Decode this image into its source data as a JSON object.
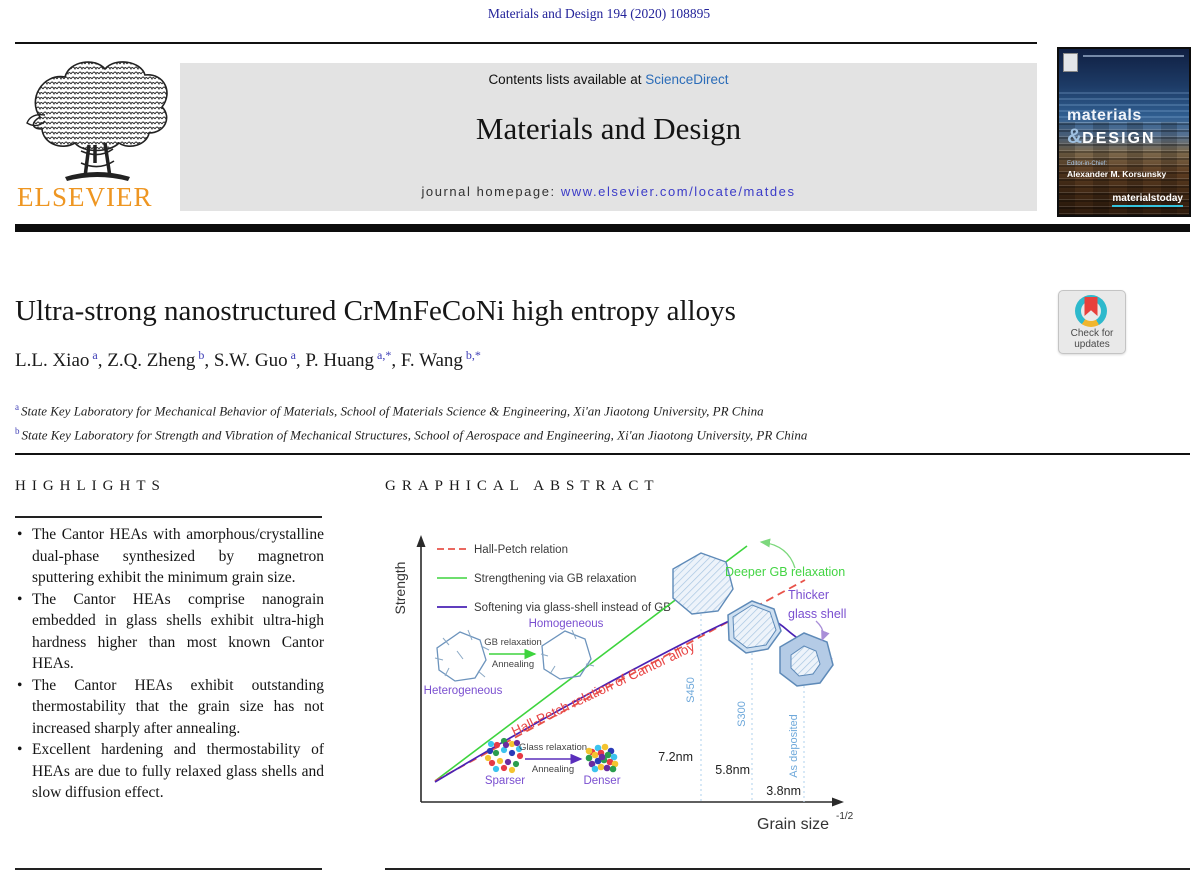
{
  "page": {
    "citation": "Materials and Design 194 (2020) 108895"
  },
  "header": {
    "contents_prefix": "Contents lists available at ",
    "sciencedirect": "ScienceDirect",
    "journal_title": "Materials and Design",
    "homepage_prefix": "journal homepage: ",
    "homepage_url": "www.elsevier.com/locate/matdes",
    "publisher": "ELSEVIER"
  },
  "cover": {
    "title_top": "materials",
    "amp": "&",
    "title_bottom": "DESIGN",
    "editor_label": "Editor-in-Chief:",
    "editor": "Alexander M. Korsunsky",
    "brand": "materialstoday"
  },
  "article": {
    "title": "Ultra-strong nanostructured CrMnFeCoNi high entropy alloys",
    "authors": [
      {
        "name": "L.L. Xiao",
        "sup": "a",
        "sep": ", "
      },
      {
        "name": "Z.Q. Zheng",
        "sup": "b",
        "sep": ", "
      },
      {
        "name": "S.W. Guo",
        "sup": "a",
        "sep": ", "
      },
      {
        "name": "P. Huang",
        "sup": "a,*",
        "sep": ", "
      },
      {
        "name": "F. Wang",
        "sup": "b,*",
        "sep": ""
      }
    ],
    "affiliations": [
      {
        "sup": "a",
        "text": "State Key Laboratory for Mechanical Behavior of Materials, School of Materials Science & Engineering, Xi'an Jiaotong University, PR China"
      },
      {
        "sup": "b",
        "text": "State Key Laboratory for Strength and Vibration of Mechanical Structures, School of Aerospace and Engineering, Xi'an Jiaotong University, PR China"
      }
    ],
    "check_updates": {
      "line1": "Check for",
      "line2": "updates"
    }
  },
  "highlights": {
    "heading": "HIGHLIGHTS",
    "items": [
      "The Cantor HEAs with amorphous/crystalline dual-phase synthesized by magnetron sputtering exhibit the minimum grain size.",
      "The Cantor HEAs comprise nanograin embedded in glass shells exhibit ultra-high hardness higher than most known Cantor HEAs.",
      "The Cantor HEAs exhibit outstanding thermostability that the grain size has not increased sharply after annealing.",
      "Excellent hardening and thermostability of HEAs are due to fully relaxed glass shells and slow diffusion effect."
    ]
  },
  "graphical_abstract": {
    "heading": "GRAPHICAL ABSTRACT",
    "chart_data": {
      "type": "line",
      "title": "",
      "xlabel": "Grain size",
      "xlabel_sup": "-1/2",
      "ylabel": "Strength",
      "axes_quantitative": false,
      "legend_position": "top-left",
      "series": [
        {
          "name": "Hall-Petch relation",
          "style": "dashed",
          "color": "#e8534a"
        },
        {
          "name": "Strengthening via GB relaxation",
          "style": "solid",
          "color": "#3ed43e"
        },
        {
          "name": "Softening via glass-shell instead of GB",
          "style": "solid",
          "color": "#4a22b4"
        }
      ],
      "samples": [
        {
          "label": "S450",
          "grain_size": "7.2nm"
        },
        {
          "label": "S300",
          "grain_size": "5.8nm"
        },
        {
          "label": "As deposited",
          "grain_size": "3.8nm"
        }
      ],
      "annotations": {
        "deeper_gb": "Deeper GB relaxation",
        "thicker_line1": "Thicker",
        "thicker_line2": "glass shell",
        "hall_petch_cantor": "Hall-Petch relation of Cantor alloy",
        "heterogeneous": "Heterogeneous",
        "homogeneous": "Homogeneous",
        "gb_relaxation": "GB relaxation",
        "annealing_top": "Annealing",
        "glass_relaxation": "Glass relaxation",
        "annealing_bottom": "Annealing",
        "sparser": "Sparser",
        "denser": "Denser",
        "s450": "S450",
        "s300": "S300",
        "as_deposited": "As deposited",
        "nm72": "7.2nm",
        "nm58": "5.8nm",
        "nm38": "3.8nm"
      }
    }
  },
  "colors": {
    "elsevier_orange": "#ee9622",
    "sciencedirect_blue": "#2b6cb8",
    "homepage_link_blue": "#3b3bc8",
    "citation_navy": "#23239a",
    "hall_petch_red": "#e8534a",
    "gb_green": "#3ed43e",
    "glass_purple": "#4a22b4",
    "sample_label_blue": "#6ea8da",
    "annotation_purple": "#7a4fd0"
  }
}
